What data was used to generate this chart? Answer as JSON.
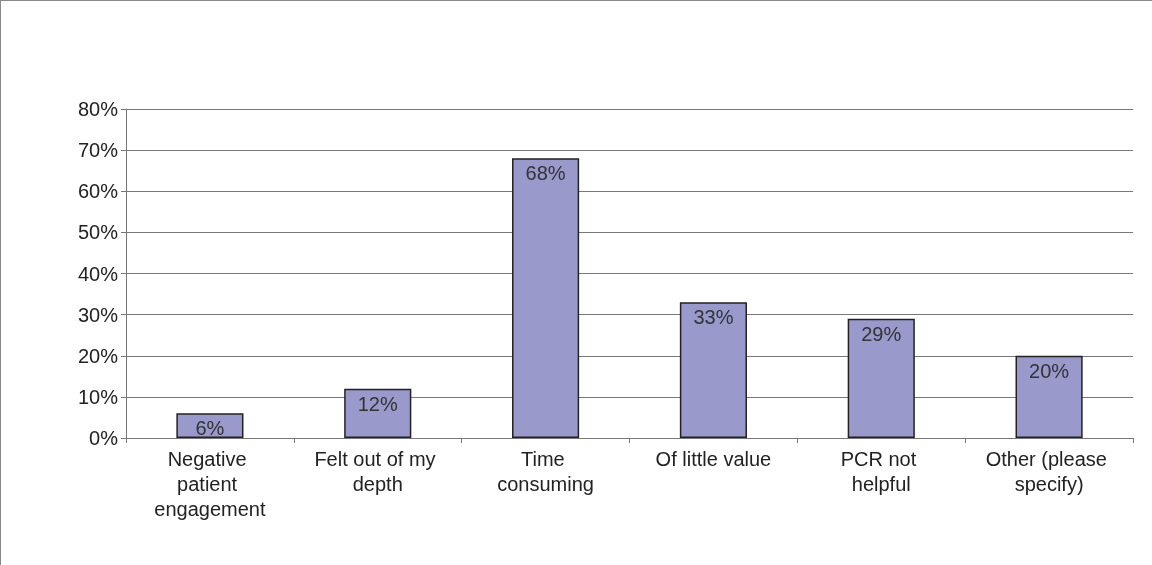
{
  "chart_data": {
    "type": "bar",
    "categories": [
      "Negative patient engagement",
      "Felt out of my depth",
      "Time consuming",
      "Of little value",
      "PCR not helpful",
      "Other (please specify)"
    ],
    "values": [
      6,
      12,
      68,
      33,
      29,
      20
    ],
    "value_labels": [
      "6%",
      "12%",
      "68%",
      "33%",
      "29%",
      "20%"
    ],
    "color": "#9999cc",
    "ylim": [
      0,
      80
    ],
    "yticks": [
      {
        "value": 0,
        "label": "0%"
      },
      {
        "value": 10,
        "label": "10%"
      },
      {
        "value": 20,
        "label": "20%"
      },
      {
        "value": 30,
        "label": "30%"
      },
      {
        "value": 40,
        "label": "40%"
      },
      {
        "value": 50,
        "label": "50%"
      },
      {
        "value": 60,
        "label": "60%"
      },
      {
        "value": 70,
        "label": "70%"
      },
      {
        "value": 80,
        "label": "80%"
      }
    ],
    "grid": "y"
  }
}
